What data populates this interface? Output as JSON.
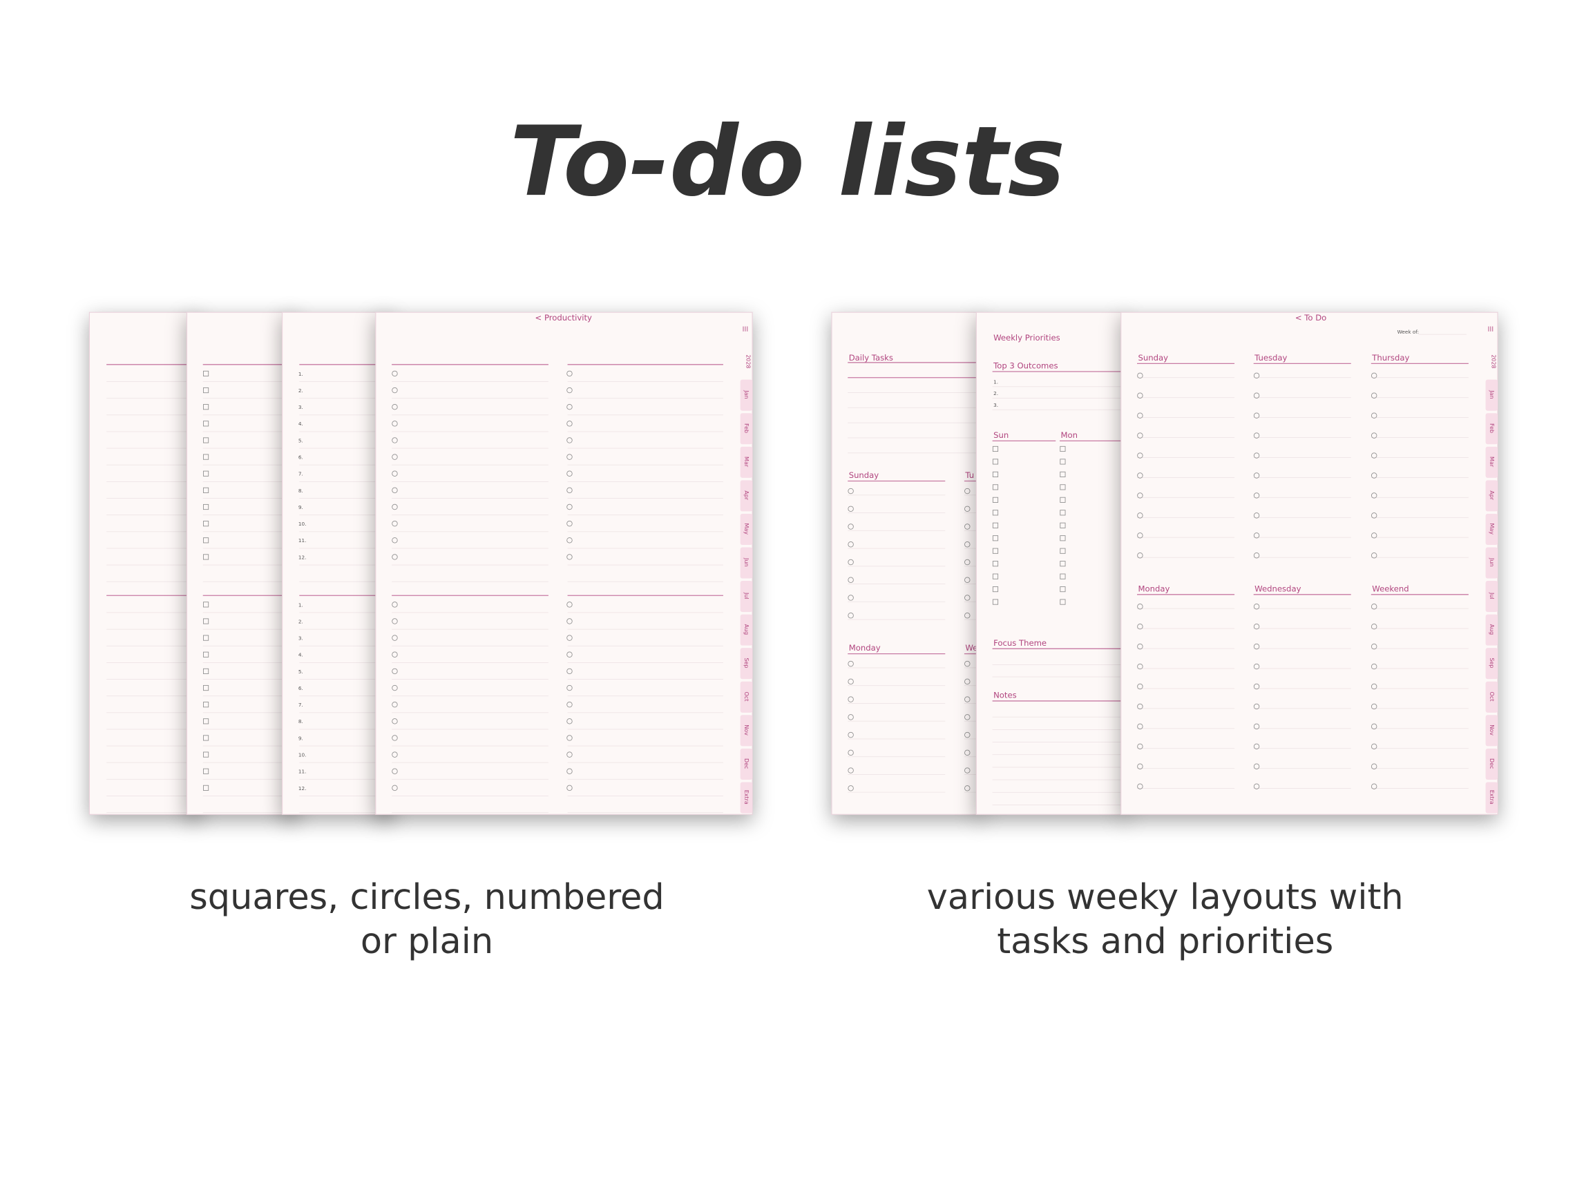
{
  "header": {
    "title": "To-do lists"
  },
  "left": {
    "caption": [
      "squares, circles, numbered",
      "or plain"
    ],
    "nav": "< Productivity",
    "year": "2028",
    "tabs": [
      "Jan",
      "Feb",
      "Mar",
      "Apr",
      "May",
      "Jun",
      "Jul",
      "Aug",
      "Sep",
      "Oct",
      "Nov",
      "Dec",
      "Extra"
    ],
    "numbers": [
      "1.",
      "2.",
      "3.",
      "4.",
      "5.",
      "6.",
      "7.",
      "8.",
      "9.",
      "10.",
      "11.",
      "12."
    ]
  },
  "right": {
    "caption": [
      "various weeky layouts with",
      "tasks and priorities"
    ],
    "daily_tasks": "Daily Tasks",
    "days_a": [
      "Sunday",
      "Tu"
    ],
    "days_b": [
      "Monday",
      "We"
    ],
    "weekly_title": "Weekly Priorities",
    "top3": "Top 3 Outcomes",
    "top3_numbers": [
      "1.",
      "2.",
      "3."
    ],
    "sun": "Sun",
    "mon": "Mon",
    "focus": "Focus Theme",
    "notes": "Notes",
    "nav": "< To Do",
    "week_of": "Week of:",
    "year": "2028",
    "tabs": [
      "Jan",
      "Feb",
      "Mar",
      "Apr",
      "May",
      "Jun",
      "Jul",
      "Aug",
      "Sep",
      "Oct",
      "Nov",
      "Dec",
      "Extra"
    ],
    "columns": [
      [
        "Sunday",
        "Tuesday",
        "Thursday"
      ],
      [
        "Monday",
        "Wednesday",
        "Weekend"
      ]
    ]
  }
}
